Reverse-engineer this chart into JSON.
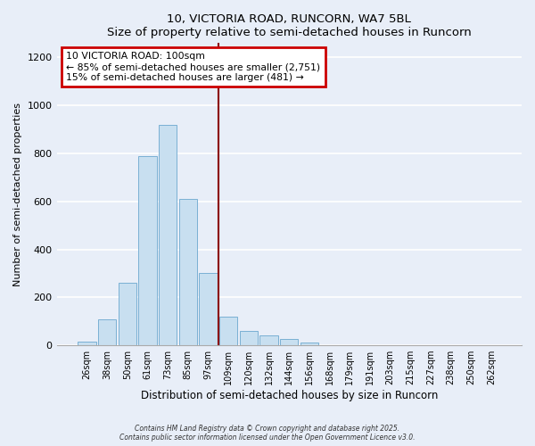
{
  "title_line1": "10, VICTORIA ROAD, RUNCORN, WA7 5BL",
  "title_line2": "Size of property relative to semi-detached houses in Runcorn",
  "xlabel": "Distribution of semi-detached houses by size in Runcorn",
  "ylabel": "Number of semi-detached properties",
  "bar_labels": [
    "26sqm",
    "38sqm",
    "50sqm",
    "61sqm",
    "73sqm",
    "85sqm",
    "97sqm",
    "109sqm",
    "120sqm",
    "132sqm",
    "144sqm",
    "156sqm",
    "168sqm",
    "179sqm",
    "191sqm",
    "203sqm",
    "215sqm",
    "227sqm",
    "238sqm",
    "250sqm",
    "262sqm"
  ],
  "bar_values": [
    15,
    110,
    260,
    790,
    920,
    610,
    300,
    120,
    60,
    40,
    25,
    10,
    0,
    0,
    0,
    0,
    0,
    0,
    0,
    0,
    0
  ],
  "bar_color": "#c8dff0",
  "bar_edge_color": "#7ab0d4",
  "vline_x_idx": 6,
  "vline_color": "#8b0000",
  "annotation_title": "10 VICTORIA ROAD: 100sqm",
  "annotation_line1": "← 85% of semi-detached houses are smaller (2,751)",
  "annotation_line2": "15% of semi-detached houses are larger (481) →",
  "annotation_box_color": "#ffffff",
  "annotation_box_edge": "#cc0000",
  "ylim": [
    0,
    1260
  ],
  "yticks": [
    0,
    200,
    400,
    600,
    800,
    1000,
    1200
  ],
  "footer_line1": "Contains HM Land Registry data © Crown copyright and database right 2025.",
  "footer_line2": "Contains public sector information licensed under the Open Government Licence v3.0.",
  "background_color": "#e8eef8",
  "grid_color": "#ffffff"
}
